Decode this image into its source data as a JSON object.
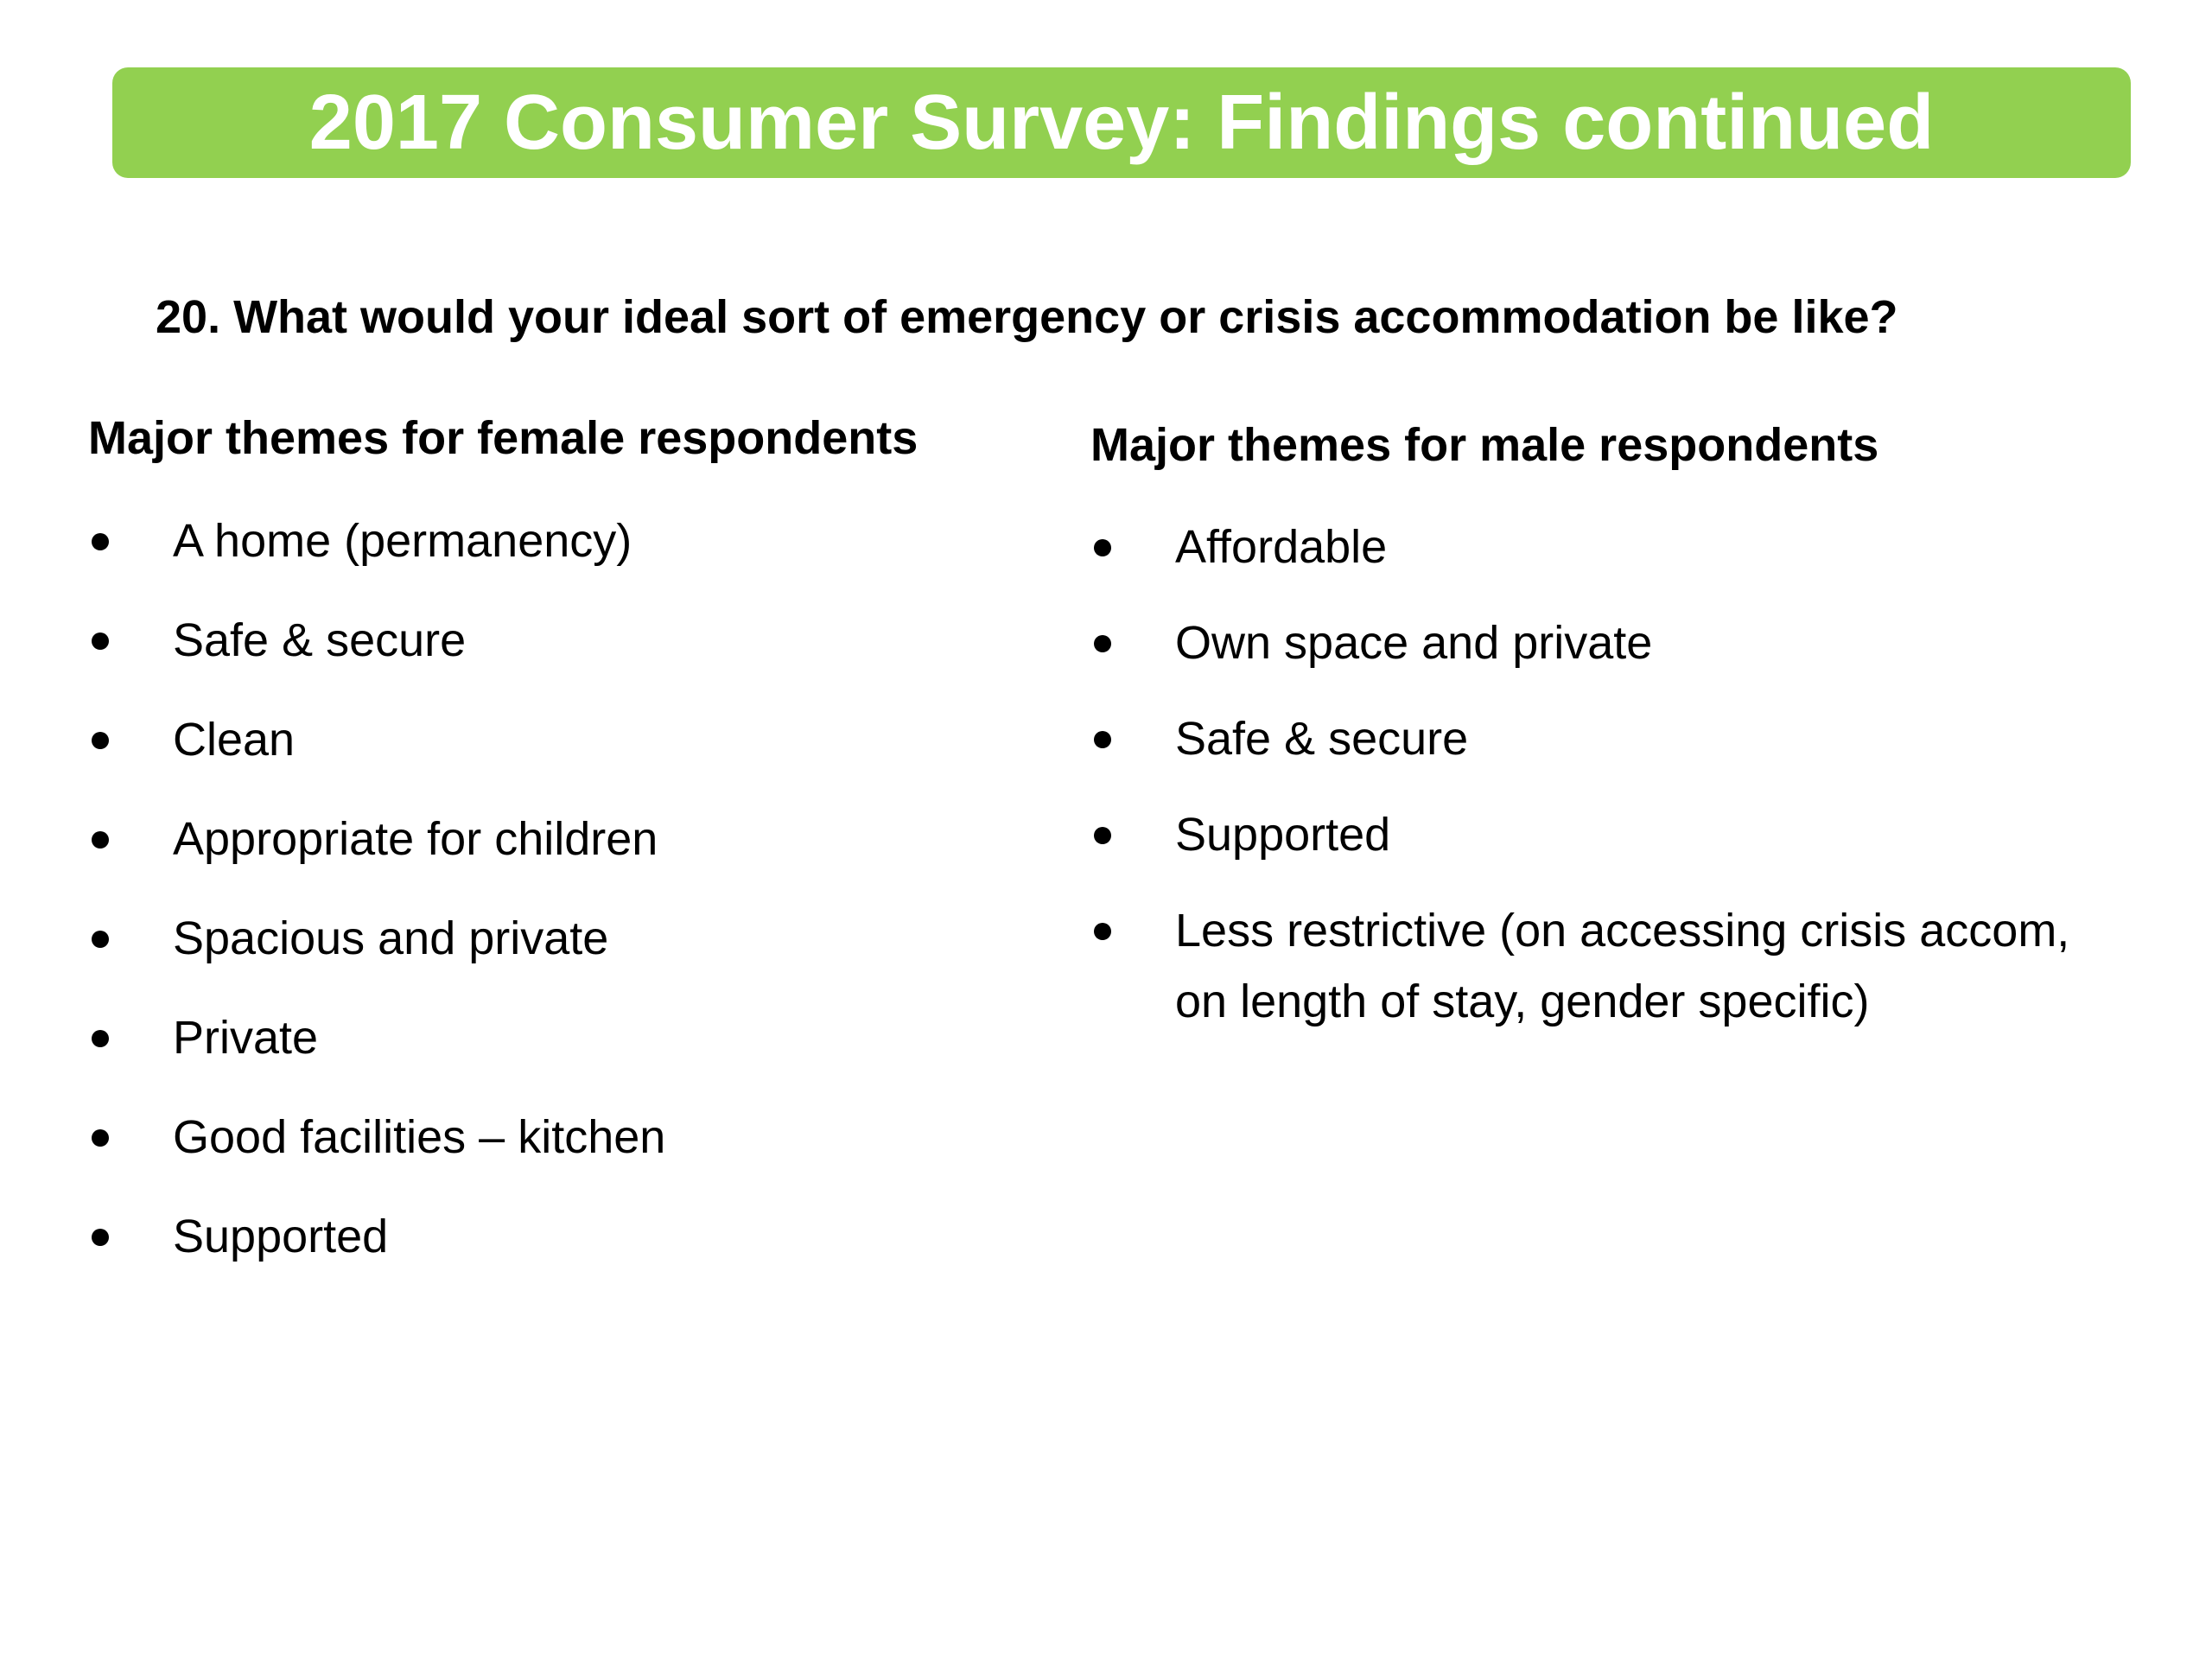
{
  "slide": {
    "title": "2017 Consumer Survey: Findings continued",
    "question": "20. What would your ideal sort of emergency or crisis accommodation be like?",
    "colors": {
      "banner": "#92d050",
      "title_text": "#ffffff",
      "body_text": "#000000",
      "background": "#ffffff"
    }
  },
  "female": {
    "heading": "Major themes for female respondents",
    "items": [
      "A home (permanency)",
      "Safe & secure",
      "Clean",
      "Appropriate for children",
      "Spacious and private",
      "Private",
      "Good facilities – kitchen",
      "Supported"
    ]
  },
  "male": {
    "heading": "Major themes for male respondents",
    "items": [
      "Affordable",
      "Own space and private",
      "Safe & secure",
      "Supported",
      "Less restrictive (on accessing crisis accom, on length of stay, gender specific)"
    ]
  }
}
